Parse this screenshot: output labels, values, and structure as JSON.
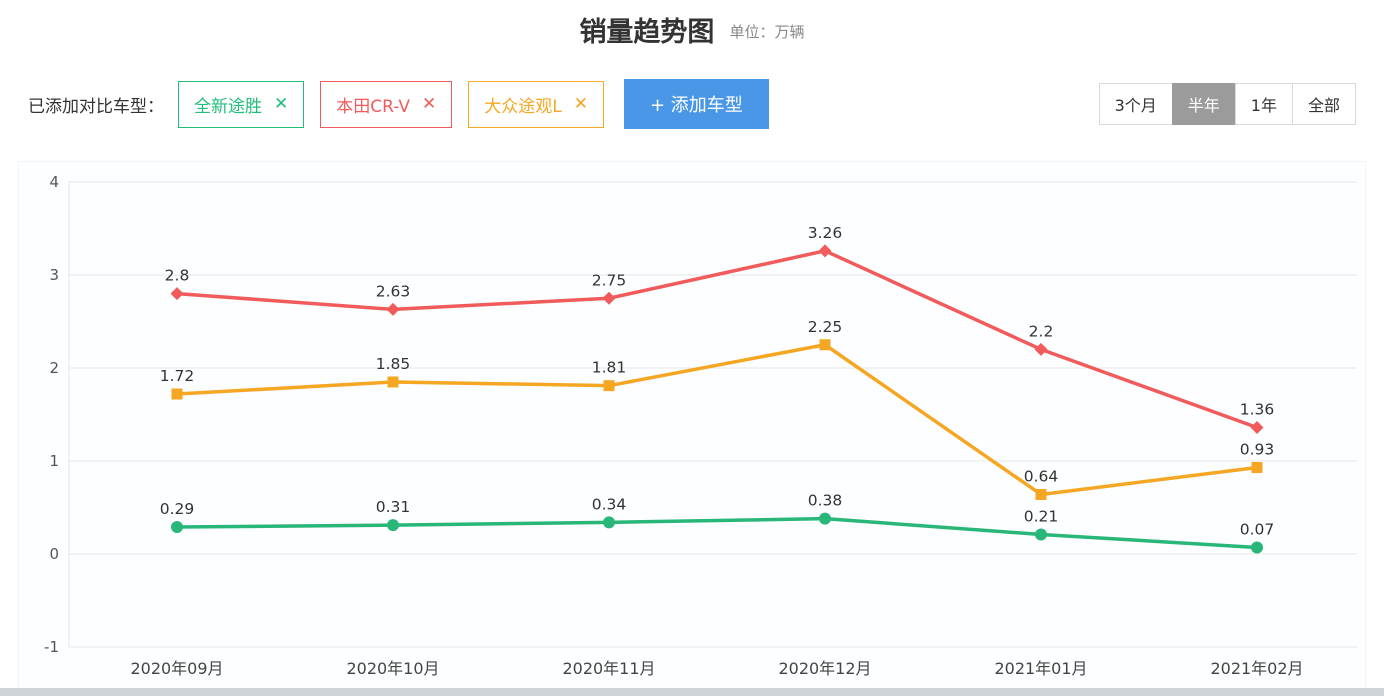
{
  "header": {
    "title": "销量趋势图",
    "unit_label": "单位：万辆"
  },
  "toolbar": {
    "added_label": "已添加对比车型：",
    "add_button_label": "+ 添加车型",
    "remove_icon": "✕",
    "tags": [
      {
        "label": "全新途胜",
        "color": "#22bd7a"
      },
      {
        "label": "本田CR-V",
        "color": "#f15b5b"
      },
      {
        "label": "大众途观L",
        "color": "#f5a623"
      }
    ]
  },
  "range_tabs": {
    "options": [
      "3个月",
      "半年",
      "1年",
      "全部"
    ],
    "selected": "半年"
  },
  "colors": {
    "add_button_bg": "#4a97e8",
    "tab_selected_bg": "#9b9b9b",
    "grid": "#e5e6e8",
    "axis_text": "#555",
    "data_label_text": "#333"
  },
  "chart_data": {
    "type": "line",
    "title": "销量趋势图",
    "unit": "万辆",
    "categories": [
      "2020年09月",
      "2020年10月",
      "2020年11月",
      "2020年12月",
      "2021年01月",
      "2021年02月"
    ],
    "series": [
      {
        "name": "全新途胜",
        "color": "#28b779",
        "marker": "circle",
        "values": [
          0.29,
          0.31,
          0.34,
          0.38,
          0.21,
          0.07
        ]
      },
      {
        "name": "本田CR-V",
        "color": "#f15b5b",
        "marker": "diamond",
        "values": [
          2.8,
          2.63,
          2.75,
          3.26,
          2.2,
          1.36
        ]
      },
      {
        "name": "大众途观L",
        "color": "#f5a623",
        "marker": "square",
        "values": [
          1.72,
          1.85,
          1.81,
          2.25,
          0.64,
          0.93
        ]
      }
    ],
    "ylim": [
      -1,
      4
    ],
    "yticks": [
      4,
      3,
      2,
      1,
      0,
      -1
    ],
    "grid": true,
    "legend_position": "none"
  }
}
